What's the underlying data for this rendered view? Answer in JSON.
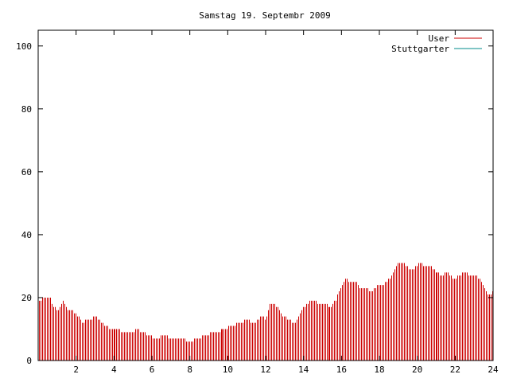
{
  "chart_data": {
    "type": "bar",
    "title": "Samstag 19. Septembr 2009",
    "xlabel": "",
    "ylabel": "",
    "xlim": [
      0,
      24
    ],
    "ylim": [
      0,
      105
    ],
    "xticks": [
      "2",
      "4",
      "6",
      "8",
      "10",
      "12",
      "14",
      "16",
      "18",
      "20",
      "22",
      "24"
    ],
    "yticks": [
      "0",
      "20",
      "40",
      "60",
      "80",
      "100"
    ],
    "grid": false,
    "legend_position": "top-right",
    "series": [
      {
        "name": "User",
        "color": "#cc0000",
        "keypoints": [
          [
            0.0,
            19
          ],
          [
            0.3,
            20
          ],
          [
            0.6,
            20
          ],
          [
            0.8,
            17
          ],
          [
            1.0,
            16
          ],
          [
            1.2,
            18
          ],
          [
            1.3,
            19
          ],
          [
            1.5,
            16
          ],
          [
            1.7,
            16
          ],
          [
            1.9,
            15
          ],
          [
            2.1,
            14
          ],
          [
            2.3,
            12
          ],
          [
            2.5,
            13
          ],
          [
            2.7,
            13
          ],
          [
            3.0,
            14
          ],
          [
            3.2,
            13
          ],
          [
            3.5,
            11
          ],
          [
            3.8,
            10
          ],
          [
            4.2,
            10
          ],
          [
            4.5,
            9
          ],
          [
            4.9,
            9
          ],
          [
            5.2,
            10
          ],
          [
            5.5,
            9
          ],
          [
            5.8,
            8
          ],
          [
            6.2,
            7
          ],
          [
            6.6,
            8
          ],
          [
            7.0,
            7
          ],
          [
            7.5,
            7
          ],
          [
            8.0,
            6
          ],
          [
            8.4,
            7
          ],
          [
            8.7,
            8
          ],
          [
            9.3,
            9
          ],
          [
            9.8,
            10
          ],
          [
            10.2,
            11
          ],
          [
            10.6,
            12
          ],
          [
            11.0,
            13
          ],
          [
            11.4,
            12
          ],
          [
            11.8,
            14
          ],
          [
            12.0,
            13
          ],
          [
            12.2,
            18
          ],
          [
            12.4,
            18
          ],
          [
            12.6,
            17
          ],
          [
            12.9,
            14
          ],
          [
            13.2,
            13
          ],
          [
            13.5,
            12
          ],
          [
            13.8,
            15
          ],
          [
            14.0,
            17
          ],
          [
            14.3,
            19
          ],
          [
            14.5,
            19
          ],
          [
            14.8,
            18
          ],
          [
            15.1,
            18
          ],
          [
            15.4,
            17
          ],
          [
            15.7,
            19
          ],
          [
            16.0,
            24
          ],
          [
            16.2,
            26
          ],
          [
            16.5,
            25
          ],
          [
            16.8,
            25
          ],
          [
            17.0,
            23
          ],
          [
            17.3,
            23
          ],
          [
            17.6,
            22
          ],
          [
            17.9,
            24
          ],
          [
            18.2,
            24
          ],
          [
            18.5,
            26
          ],
          [
            18.8,
            29
          ],
          [
            19.0,
            31
          ],
          [
            19.3,
            31
          ],
          [
            19.6,
            29
          ],
          [
            19.8,
            29
          ],
          [
            20.1,
            31
          ],
          [
            20.4,
            30
          ],
          [
            20.7,
            30
          ],
          [
            21.0,
            28
          ],
          [
            21.3,
            27
          ],
          [
            21.6,
            28
          ],
          [
            21.9,
            26
          ],
          [
            22.2,
            27
          ],
          [
            22.5,
            28
          ],
          [
            22.8,
            27
          ],
          [
            23.1,
            27
          ],
          [
            23.4,
            25
          ],
          [
            23.6,
            22
          ],
          [
            23.8,
            21
          ],
          [
            24.0,
            22
          ]
        ]
      },
      {
        "name": "Stuttgarter",
        "color": "#008b8b",
        "keypoints": []
      }
    ]
  }
}
